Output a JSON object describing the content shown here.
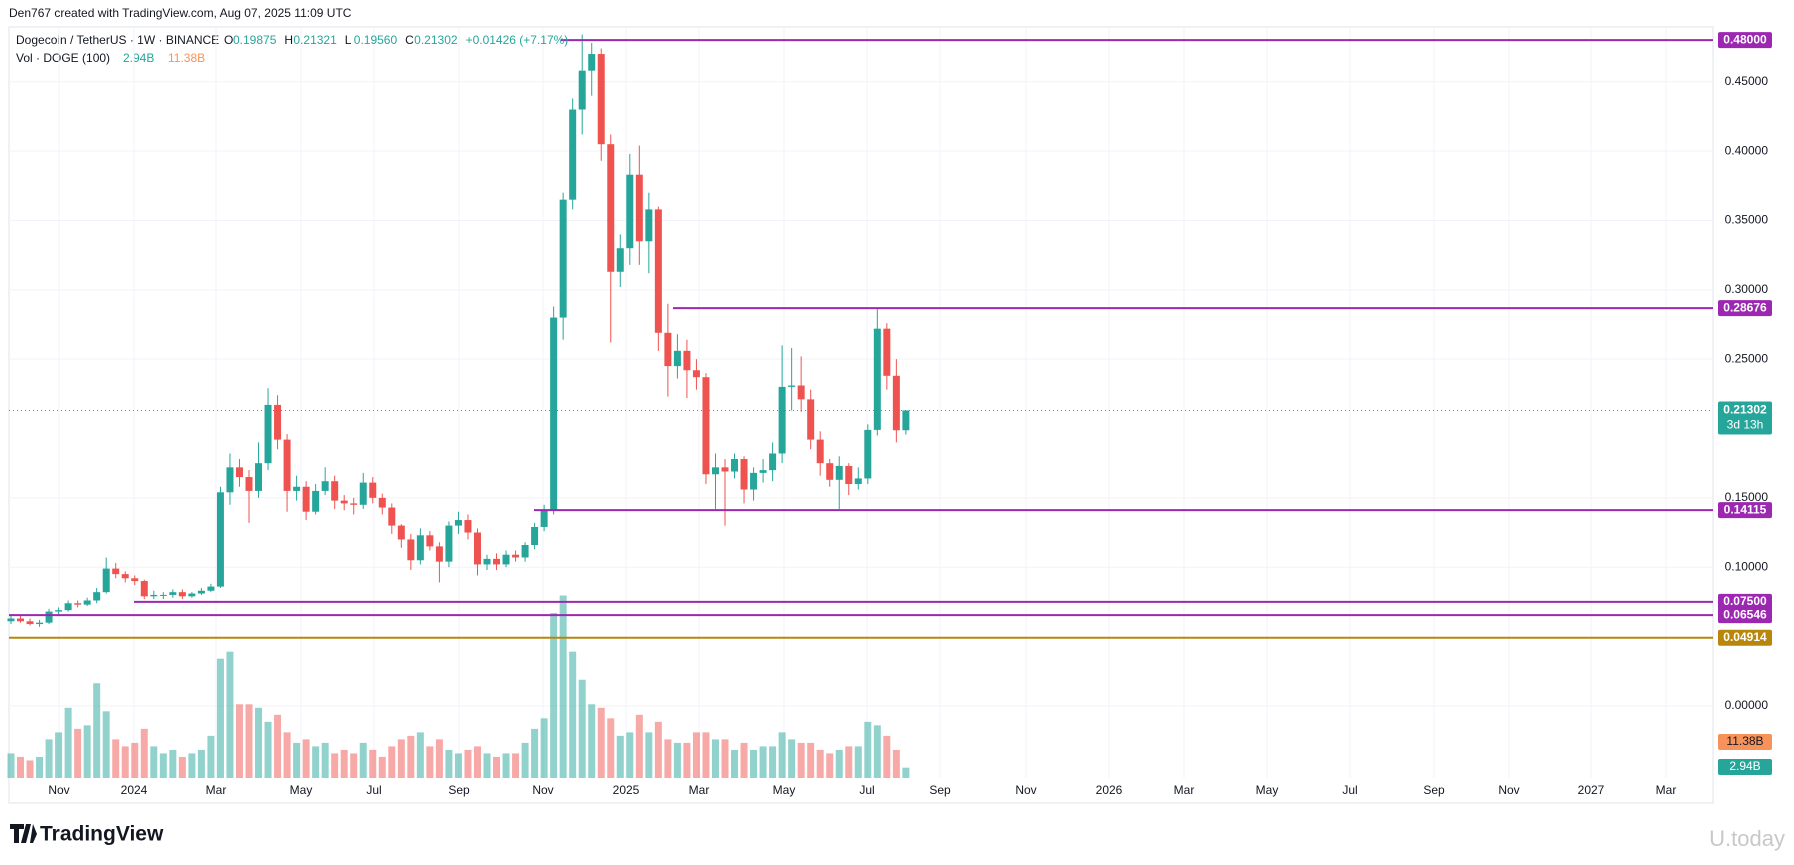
{
  "chart_data": {
    "type": "candlestick",
    "attribution": "Den767 created with TradingView.com, Aug 07, 2025 11:09 UTC",
    "symbol": "Dogecoin / TetherUS · 1W · BINANCE",
    "ohlc_legend": [
      {
        "label": "O",
        "value": "0.19875"
      },
      {
        "label": "H",
        "value": "0.21321"
      },
      {
        "label": "L",
        "value": "0.19560"
      },
      {
        "label": "C",
        "value": "0.21302"
      }
    ],
    "change": "+0.01426 (+7.17%)",
    "volume_legend": {
      "name": "Vol · DOGE (100)",
      "volume": "2.94B",
      "volume_ma": "11.38B"
    },
    "up_color": "#26a69a",
    "down_color": "#ef5350",
    "ylim": [
      -0.052,
      0.4895
    ],
    "yticks": [
      {
        "value": 0,
        "label": "0.00000"
      },
      {
        "value": 0.1,
        "label": "0.10000"
      },
      {
        "value": 0.15,
        "label": "0.15000"
      },
      {
        "value": 0.25,
        "label": "0.25000"
      },
      {
        "value": 0.3,
        "label": "0.30000"
      },
      {
        "value": 0.35,
        "label": "0.35000"
      },
      {
        "value": 0.4,
        "label": "0.40000"
      },
      {
        "value": 0.45,
        "label": "0.45000"
      }
    ],
    "grid": true,
    "x_labels": [
      "Nov",
      "2024",
      "Mar",
      "May",
      "Jul",
      "Sep",
      "Nov",
      "2025",
      "Mar",
      "May",
      "Jul",
      "Sep",
      "Nov",
      "2026",
      "Mar",
      "May",
      "Jul",
      "Sep",
      "Nov",
      "2027",
      "Mar"
    ],
    "open": [
      0.061,
      0.063,
      0.061,
      0.059,
      0.06,
      0.068,
      0.069,
      0.074,
      0.073,
      0.076,
      0.082,
      0.099,
      0.095,
      0.092,
      0.09,
      0.079,
      0.08,
      0.08,
      0.082,
      0.079,
      0.081,
      0.083,
      0.086,
      0.154,
      0.172,
      0.165,
      0.155,
      0.175,
      0.217,
      0.192,
      0.155,
      0.158,
      0.14,
      0.155,
      0.162,
      0.148,
      0.146,
      0.145,
      0.161,
      0.15,
      0.143,
      0.13,
      0.12,
      0.105,
      0.123,
      0.115,
      0.104,
      0.13,
      0.134,
      0.125,
      0.102,
      0.106,
      0.102,
      0.109,
      0.107,
      0.116,
      0.129,
      0.141,
      0.28,
      0.365,
      0.43,
      0.458,
      0.47,
      0.405,
      0.313,
      0.33,
      0.383,
      0.335,
      0.358,
      0.269,
      0.245,
      0.256,
      0.242,
      0.237,
      0.167,
      0.172,
      0.169,
      0.178,
      0.156,
      0.168,
      0.17,
      0.182,
      0.23,
      0.231,
      0.221,
      0.192,
      0.175,
      0.163,
      0.173,
      0.16,
      0.164,
      0.199,
      0.272,
      0.238,
      0.19875
    ],
    "high": [
      0.065,
      0.065,
      0.063,
      0.062,
      0.07,
      0.071,
      0.076,
      0.076,
      0.078,
      0.085,
      0.107,
      0.103,
      0.097,
      0.094,
      0.091,
      0.083,
      0.082,
      0.084,
      0.084,
      0.082,
      0.085,
      0.088,
      0.158,
      0.182,
      0.178,
      0.17,
      0.19,
      0.229,
      0.224,
      0.196,
      0.166,
      0.162,
      0.16,
      0.172,
      0.166,
      0.152,
      0.15,
      0.168,
      0.165,
      0.153,
      0.146,
      0.131,
      0.124,
      0.128,
      0.126,
      0.118,
      0.133,
      0.14,
      0.138,
      0.128,
      0.109,
      0.11,
      0.112,
      0.112,
      0.118,
      0.132,
      0.145,
      0.288,
      0.37,
      0.438,
      0.484,
      0.478,
      0.474,
      0.412,
      0.34,
      0.398,
      0.404,
      0.37,
      0.36,
      0.29,
      0.268,
      0.264,
      0.25,
      0.24,
      0.182,
      0.178,
      0.182,
      0.18,
      0.172,
      0.178,
      0.19,
      0.26,
      0.258,
      0.252,
      0.228,
      0.198,
      0.178,
      0.18,
      0.175,
      0.172,
      0.203,
      0.2868,
      0.276,
      0.25,
      0.21321
    ],
    "low": [
      0.059,
      0.06,
      0.058,
      0.057,
      0.059,
      0.066,
      0.068,
      0.071,
      0.072,
      0.074,
      0.081,
      0.092,
      0.089,
      0.087,
      0.077,
      0.077,
      0.077,
      0.078,
      0.077,
      0.078,
      0.08,
      0.082,
      0.085,
      0.145,
      0.158,
      0.132,
      0.15,
      0.17,
      0.185,
      0.14,
      0.148,
      0.134,
      0.138,
      0.152,
      0.142,
      0.141,
      0.138,
      0.142,
      0.146,
      0.138,
      0.124,
      0.114,
      0.098,
      0.102,
      0.112,
      0.089,
      0.1,
      0.124,
      0.12,
      0.094,
      0.098,
      0.098,
      0.1,
      0.104,
      0.104,
      0.113,
      0.126,
      0.138,
      0.264,
      0.358,
      0.412,
      0.44,
      0.393,
      0.262,
      0.302,
      0.318,
      0.318,
      0.312,
      0.256,
      0.223,
      0.236,
      0.222,
      0.228,
      0.16,
      0.142,
      0.13,
      0.164,
      0.146,
      0.148,
      0.161,
      0.162,
      0.175,
      0.213,
      0.212,
      0.185,
      0.166,
      0.158,
      0.142,
      0.152,
      0.156,
      0.16,
      0.195,
      0.228,
      0.19,
      0.1956
    ],
    "close": [
      0.063,
      0.061,
      0.059,
      0.06,
      0.068,
      0.069,
      0.074,
      0.073,
      0.076,
      0.082,
      0.099,
      0.095,
      0.092,
      0.09,
      0.079,
      0.08,
      0.08,
      0.082,
      0.079,
      0.081,
      0.083,
      0.086,
      0.154,
      0.172,
      0.165,
      0.155,
      0.175,
      0.217,
      0.192,
      0.155,
      0.158,
      0.14,
      0.155,
      0.162,
      0.148,
      0.146,
      0.145,
      0.161,
      0.15,
      0.143,
      0.13,
      0.12,
      0.105,
      0.123,
      0.115,
      0.104,
      0.13,
      0.134,
      0.125,
      0.102,
      0.106,
      0.102,
      0.109,
      0.107,
      0.116,
      0.129,
      0.141,
      0.28,
      0.365,
      0.43,
      0.458,
      0.47,
      0.405,
      0.313,
      0.33,
      0.383,
      0.335,
      0.358,
      0.269,
      0.245,
      0.256,
      0.242,
      0.237,
      0.167,
      0.172,
      0.169,
      0.178,
      0.156,
      0.168,
      0.17,
      0.182,
      0.23,
      0.231,
      0.221,
      0.192,
      0.175,
      0.163,
      0.173,
      0.16,
      0.164,
      0.199,
      0.272,
      0.238,
      0.19875,
      0.21302
    ],
    "volume": [
      7,
      6,
      5,
      6,
      11,
      13,
      20,
      14,
      15,
      27,
      19,
      11,
      9,
      10,
      14,
      9,
      7,
      8,
      6,
      7,
      8,
      12,
      34,
      36,
      21,
      21,
      20,
      16,
      18,
      13,
      10,
      11,
      9,
      10,
      7,
      8,
      7,
      10,
      8,
      6,
      9,
      11,
      12,
      13,
      9,
      11,
      8,
      7,
      8,
      9,
      7,
      6,
      7,
      7,
      10,
      14,
      17,
      47,
      52,
      36,
      28,
      21,
      20,
      17,
      12,
      13,
      18,
      13,
      16,
      11,
      10,
      10,
      13,
      13,
      11,
      11,
      8,
      10,
      8,
      9,
      9,
      13,
      11,
      10,
      10,
      8,
      7,
      8,
      9,
      9,
      16,
      15,
      12,
      8,
      2.94
    ],
    "volume_ylim": [
      0,
      214
    ],
    "levels": [
      {
        "value": 0.48,
        "label": "0.48000",
        "color": "#9c27b0"
      },
      {
        "value": 0.28676,
        "label": "0.28676",
        "color": "#9c27b0"
      },
      {
        "value": 0.14115,
        "label": "0.14115",
        "color": "#9c27b0"
      },
      {
        "value": 0.075,
        "label": "0.07500",
        "color": "#9c27b0"
      },
      {
        "value": 0.06546,
        "label": "0.06546",
        "color": "#9c27b0"
      },
      {
        "value": 0.04914,
        "label": "0.04914",
        "color": "#b8860b"
      }
    ],
    "last_price": {
      "value": 0.21302,
      "label": "0.21302",
      "countdown": "3d 13h"
    }
  },
  "footer": {
    "logo": "TradingView",
    "watermark": "U.today"
  }
}
